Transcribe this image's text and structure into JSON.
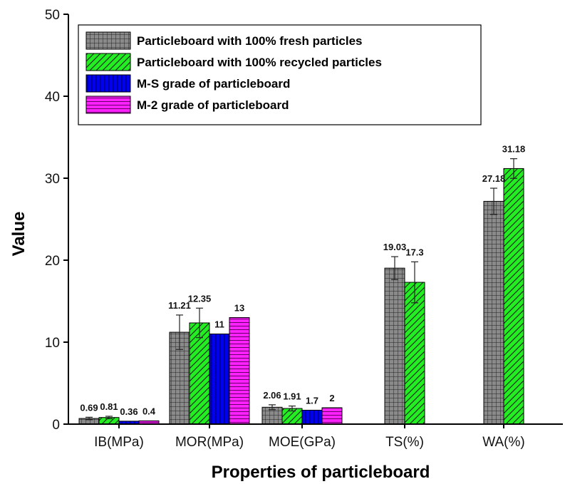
{
  "chart_data": {
    "type": "bar",
    "title": "",
    "xlabel": "Properties of particleboard",
    "ylabel": "Value",
    "ylim": [
      0,
      50
    ],
    "yticks": [
      0,
      10,
      20,
      30,
      40,
      50
    ],
    "grid": false,
    "legend_position": "top-left",
    "categories": [
      "IB(MPa)",
      "MOR(MPa)",
      "MOE(GPa)",
      "TS(%)",
      "WA(%)"
    ],
    "series": [
      {
        "name": "Particleboard with 100% fresh particles",
        "pattern": "grid",
        "color": "#808080",
        "values": [
          0.69,
          11.21,
          2.06,
          19.03,
          27.18
        ],
        "labels": [
          "0.69",
          "11.21",
          "2.06",
          "19.03",
          "27.18"
        ],
        "errors": [
          0.15,
          2.1,
          0.3,
          1.4,
          1.6
        ]
      },
      {
        "name": "Particleboard with 100% recycled particles",
        "pattern": "diagonal",
        "color": "#00e000",
        "values": [
          0.81,
          12.35,
          1.91,
          17.3,
          31.18
        ],
        "labels": [
          "0.81",
          "12.35",
          "1.91",
          "17.3",
          "31.18"
        ],
        "errors": [
          0.15,
          1.8,
          0.3,
          2.5,
          1.2
        ]
      },
      {
        "name": "M-S grade of particleboard",
        "pattern": "vertical",
        "color": "#0000ee",
        "values": [
          0.36,
          11,
          1.7,
          null,
          null
        ],
        "labels": [
          "0.36",
          "11",
          "1.7",
          "",
          ""
        ],
        "errors": [
          0,
          0,
          0,
          0,
          0
        ]
      },
      {
        "name": "M-2 grade of particleboard",
        "pattern": "horizontal",
        "color": "#ff00ff",
        "values": [
          0.4,
          13,
          2,
          null,
          null
        ],
        "labels": [
          "0.4",
          "13",
          "2",
          "",
          ""
        ],
        "errors": [
          0,
          0,
          0,
          0,
          0
        ]
      }
    ]
  }
}
